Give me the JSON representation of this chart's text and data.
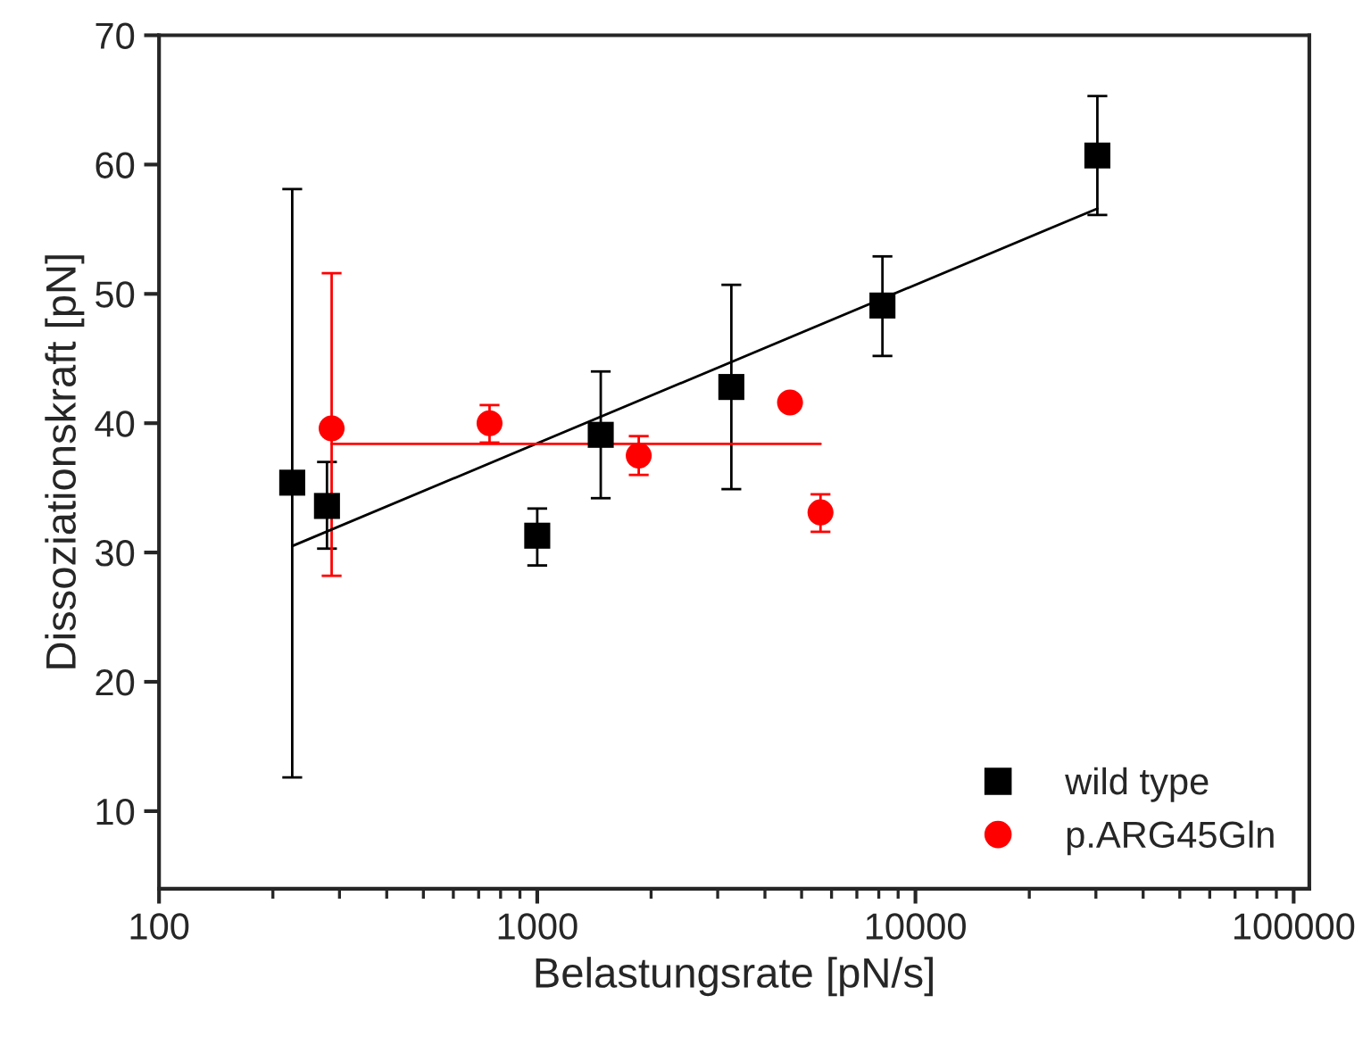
{
  "chart_data": {
    "type": "scatter",
    "xlabel": "Belastungsrate [pN/s]",
    "ylabel": "Dissoziationskraft [pN]",
    "log": "x",
    "xlim": [
      100,
      110000
    ],
    "xticks": [
      100,
      1000,
      10000,
      100000
    ],
    "ylim": [
      4,
      70
    ],
    "yticks": [
      10,
      20,
      30,
      40,
      50,
      60,
      70
    ],
    "grid": false,
    "legend": "bottom right",
    "series": [
      {
        "name": "wild type",
        "color": "#000000",
        "marker": "square",
        "x": [
          225,
          278,
          1000,
          1472,
          3260,
          8180,
          30270
        ],
        "values": [
          35.4,
          33.6,
          31.3,
          39.1,
          42.8,
          49.1,
          60.7
        ],
        "errors": [
          [
            12.6,
            58.1
          ],
          [
            30.3,
            37.0
          ],
          [
            29.0,
            33.4
          ],
          [
            34.2,
            44.0
          ],
          [
            34.9,
            50.7
          ],
          [
            45.2,
            52.9
          ],
          [
            56.1,
            65.3
          ]
        ]
      },
      {
        "name": "p.ARG45Gln",
        "color": "#ff0000",
        "marker": "circle",
        "x": [
          286,
          748,
          1855,
          4660,
          5610
        ],
        "values": [
          39.6,
          40.0,
          37.5,
          41.6,
          33.1
        ],
        "errors": [
          [
            28.2,
            51.6
          ],
          [
            38.5,
            41.4
          ],
          [
            36.0,
            39.0
          ],
          null,
          [
            31.6,
            34.5
          ]
        ]
      },
      {
        "color": "#000000",
        "type": "line",
        "line_style": "solid",
        "x": [
          225,
          30270
        ],
        "values": [
          30.5,
          56.6
        ]
      },
      {
        "color": "#ff0000",
        "type": "line",
        "line_style": "solid",
        "x": [
          286,
          5610
        ],
        "values": [
          38.4,
          38.4
        ]
      }
    ]
  }
}
